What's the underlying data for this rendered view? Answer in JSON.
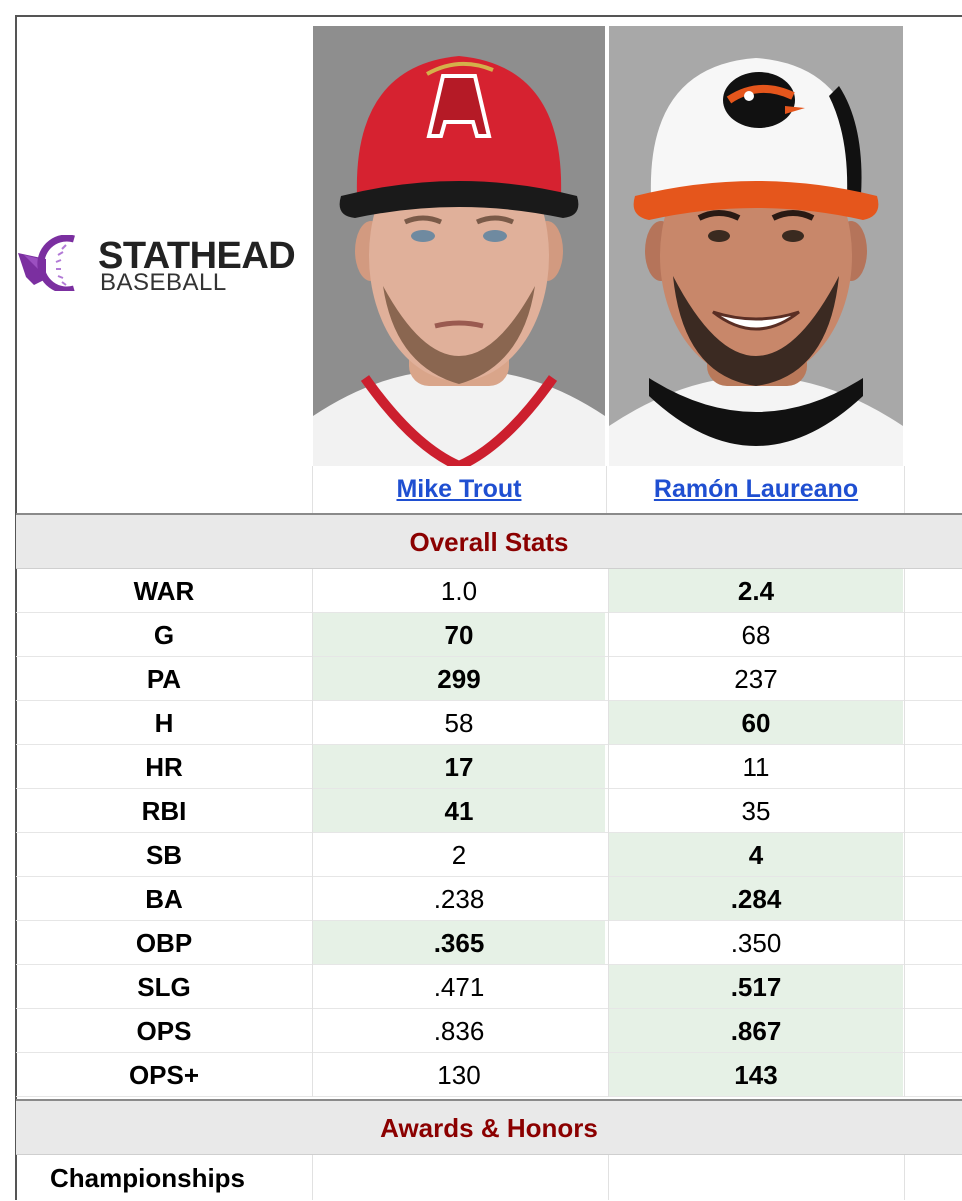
{
  "logo": {
    "brand": "STATHEAD",
    "sub": "BASEBALL",
    "accent_color": "#7b2fa0"
  },
  "players": [
    {
      "name": "Mike Trout",
      "photo": "portrait-angels-cap-red"
    },
    {
      "name": "Ramón Laureano",
      "photo": "portrait-orioles-cap-white-orange"
    }
  ],
  "sections": {
    "overall": "Overall Stats",
    "awards": "Awards & Honors"
  },
  "stats": [
    {
      "label": "WAR",
      "p1": "1.0",
      "p2": "2.4",
      "winner": 2
    },
    {
      "label": "G",
      "p1": "70",
      "p2": "68",
      "winner": 1
    },
    {
      "label": "PA",
      "p1": "299",
      "p2": "237",
      "winner": 1
    },
    {
      "label": "H",
      "p1": "58",
      "p2": "60",
      "winner": 2
    },
    {
      "label": "HR",
      "p1": "17",
      "p2": "11",
      "winner": 1
    },
    {
      "label": "RBI",
      "p1": "41",
      "p2": "35",
      "winner": 1
    },
    {
      "label": "SB",
      "p1": "2",
      "p2": "4",
      "winner": 2
    },
    {
      "label": "BA",
      "p1": ".238",
      "p2": ".284",
      "winner": 2
    },
    {
      "label": "OBP",
      "p1": ".365",
      "p2": ".350",
      "winner": 1
    },
    {
      "label": "SLG",
      "p1": ".471",
      "p2": ".517",
      "winner": 2
    },
    {
      "label": "OPS",
      "p1": ".836",
      "p2": ".867",
      "winner": 2
    },
    {
      "label": "OPS+",
      "p1": "130",
      "p2": "143",
      "winner": 2
    }
  ],
  "awards": {
    "championships_label": "Championships"
  },
  "colors": {
    "link": "#1f4fd1",
    "section_title": "#8b0000",
    "winner_bg": "#e6f1e6"
  }
}
